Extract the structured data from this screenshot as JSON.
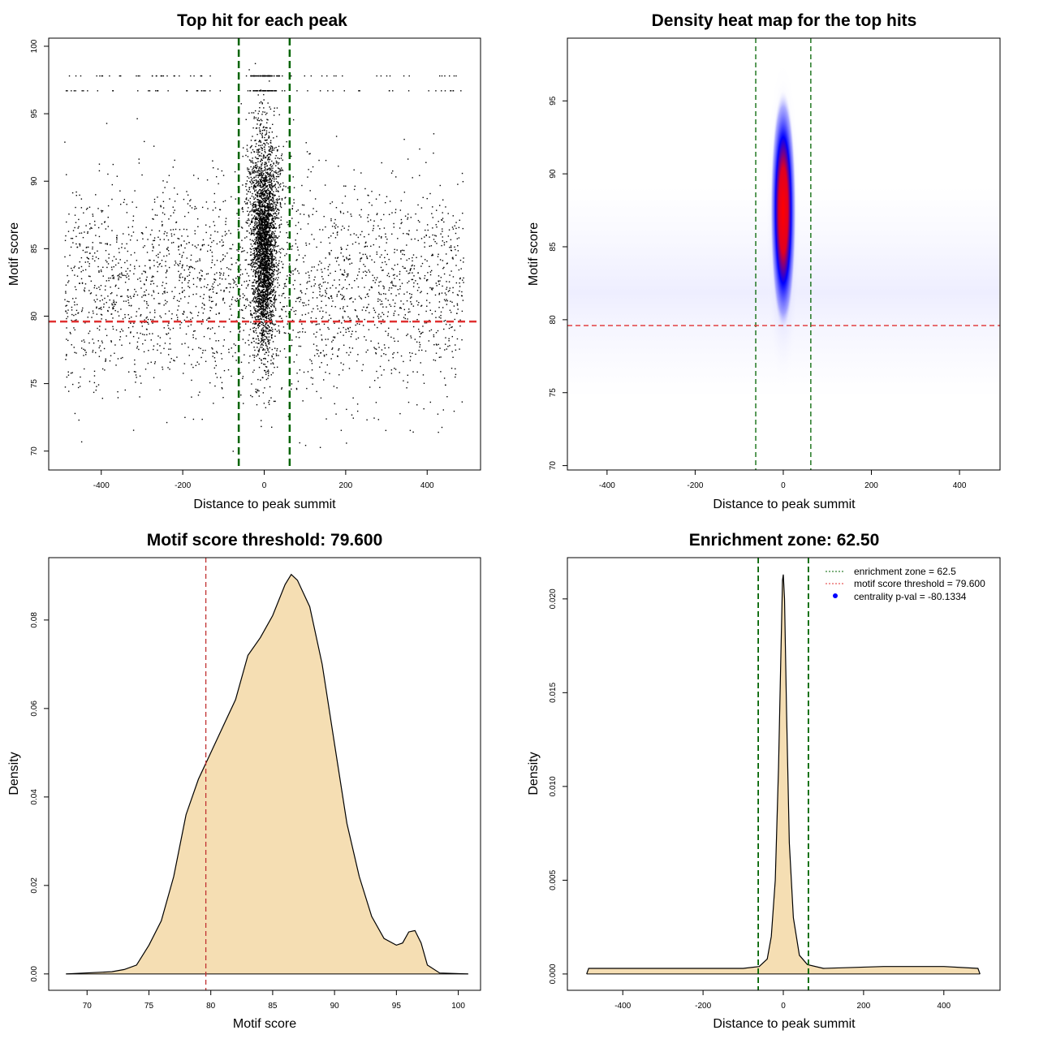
{
  "colors": {
    "green": "#006400",
    "red": "#e03030",
    "fill": "#f5deb3",
    "points": "#000000",
    "heat_low": "#0000ff",
    "heat_high": "#ff0000"
  },
  "chart_data": [
    {
      "type": "scatter",
      "title": "Top hit for each peak",
      "xlabel": "Distance to peak summit",
      "ylabel": "Motif score",
      "xlim": [
        -529,
        531
      ],
      "ylim": [
        68.6,
        100.6
      ],
      "xticks": [
        -400,
        -200,
        0,
        200,
        400
      ],
      "yticks": [
        70,
        75,
        80,
        85,
        90,
        95,
        100
      ],
      "vlines": [
        -62.5,
        62.5
      ],
      "hline": 79.6,
      "point_model": {
        "background": {
          "n": 2600,
          "x_range": [
            -490,
            490
          ],
          "y_mean": 82,
          "y_sd": 4
        },
        "central": {
          "n": 3200,
          "x_sd": 14,
          "y_mean": 85.5,
          "y_sd": 4
        },
        "top_rows": [
          96.7,
          97.8
        ]
      }
    },
    {
      "type": "heatmap",
      "title": "Density heat map for the top hits",
      "xlabel": "Distance to peak summit",
      "ylabel": "Motif score",
      "xlim": [
        -490,
        492
      ],
      "ylim": [
        69.7,
        99.3
      ],
      "xticks": [
        -400,
        -200,
        0,
        200,
        400
      ],
      "yticks": [
        70,
        75,
        80,
        85,
        90,
        95
      ],
      "vlines": [
        -62.5,
        62.5
      ],
      "hline": 79.6,
      "hotspot": {
        "x": 0,
        "y": 87.5,
        "x_sd": 9,
        "y_sd": 4.5,
        "y_extent": [
          75,
          98
        ]
      }
    },
    {
      "type": "area",
      "title": "Motif score threshold: 79.600",
      "xlabel": "Motif score",
      "ylabel": "Density",
      "xlim": [
        66.9,
        101.8
      ],
      "ylim": [
        -0.0037,
        0.0941
      ],
      "xticks": [
        70,
        75,
        80,
        85,
        90,
        95,
        100
      ],
      "yticks": [
        0.0,
        0.02,
        0.04,
        0.06,
        0.08
      ],
      "ytick_labels": [
        "0.00",
        "0.02",
        "0.04",
        "0.06",
        "0.08"
      ],
      "vline": 79.6,
      "x": [
        68.3,
        72,
        73,
        74,
        75,
        76,
        77,
        78,
        79,
        80,
        81,
        82,
        83,
        84,
        85,
        86,
        86.5,
        87,
        88,
        89,
        90,
        91,
        92,
        93,
        94,
        95,
        95.5,
        96,
        96.5,
        97,
        97.5,
        98.5,
        100.8
      ],
      "y": [
        0,
        0.0005,
        0.001,
        0.002,
        0.0065,
        0.012,
        0.022,
        0.036,
        0.044,
        0.05,
        0.056,
        0.062,
        0.072,
        0.076,
        0.081,
        0.088,
        0.0903,
        0.089,
        0.083,
        0.07,
        0.052,
        0.034,
        0.022,
        0.013,
        0.008,
        0.0065,
        0.007,
        0.0095,
        0.0098,
        0.007,
        0.002,
        0.0002,
        0
      ]
    },
    {
      "type": "area",
      "title": "Enrichment zone: 62.50",
      "xlabel": "Distance to peak summit",
      "ylabel": "Density",
      "xlim": [
        -538,
        540
      ],
      "ylim": [
        -0.00087,
        0.0222
      ],
      "xticks": [
        -400,
        -200,
        0,
        200,
        400
      ],
      "yticks": [
        0,
        0.005,
        0.01,
        0.015,
        0.02
      ],
      "ytick_labels": [
        "0.000",
        "0.005",
        "0.010",
        "0.015",
        "0.020"
      ],
      "vlines": [
        -62.5,
        62.5
      ],
      "x": [
        -490,
        -485,
        -300,
        -100,
        -60,
        -40,
        -30,
        -20,
        -12,
        -6,
        -2,
        0,
        3,
        8,
        15,
        25,
        40,
        60,
        100,
        250,
        400,
        485,
        490
      ],
      "y": [
        0,
        0.0003,
        0.0003,
        0.0003,
        0.0004,
        0.0008,
        0.002,
        0.005,
        0.011,
        0.017,
        0.021,
        0.0213,
        0.02,
        0.014,
        0.007,
        0.003,
        0.001,
        0.0005,
        0.0003,
        0.0004,
        0.0004,
        0.0003,
        0
      ],
      "legend": {
        "position": "top-right",
        "items": [
          "enrichment zone = 62.5",
          "motif score threshold = 79.600",
          "centrality p-val = -80.1334"
        ]
      }
    }
  ]
}
